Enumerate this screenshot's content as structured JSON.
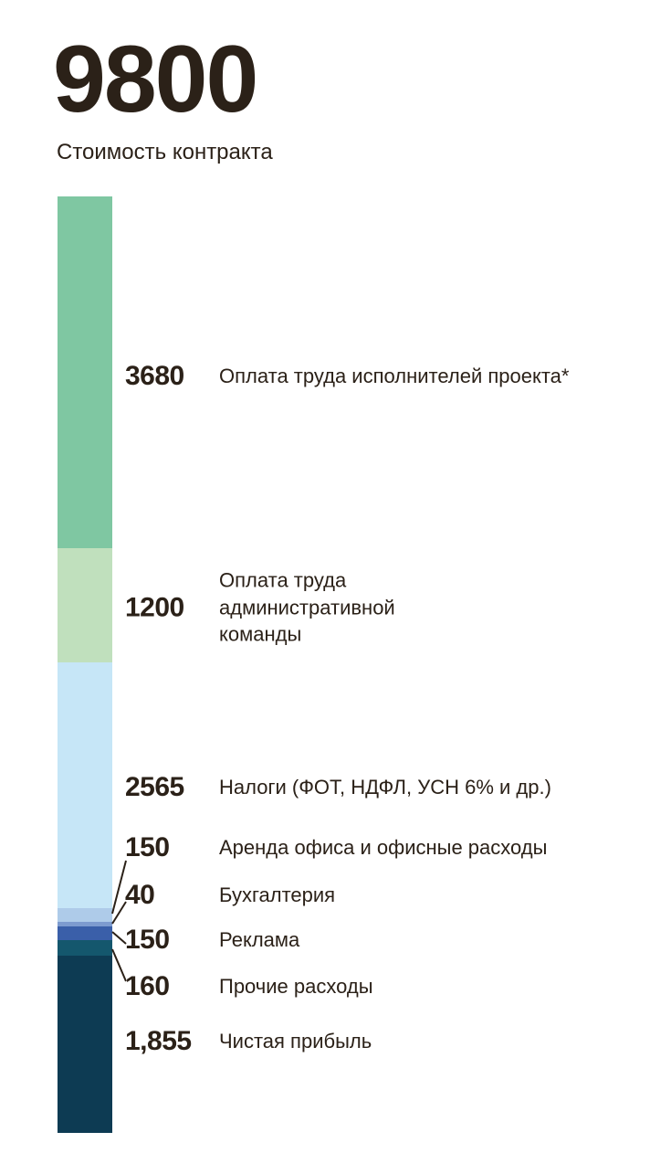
{
  "header": {
    "total": "9800",
    "subtitle": "Стоимость контракта"
  },
  "chart_data": {
    "type": "bar",
    "variant": "single-stacked-vertical-bar",
    "title": "9800",
    "subtitle": "Стоимость контракта",
    "total": 9800,
    "legend_position": "right-of-bar",
    "grid": false,
    "segments": [
      {
        "value": 3680,
        "value_label": "3680",
        "label": "Оплата труда исполнителей проекта*",
        "color": "#7fc7a2"
      },
      {
        "value": 1200,
        "value_label": "1200",
        "label": "Оплата труда административной команды",
        "color": "#c0e0bd"
      },
      {
        "value": 2565,
        "value_label": "2565",
        "label": "Налоги (ФОТ, НДФЛ, УСН 6% и др.)",
        "color": "#c6e6f7"
      },
      {
        "value": 150,
        "value_label": "150",
        "label": "Аренда офиса и офисные расходы",
        "color": "#aecbe9"
      },
      {
        "value": 40,
        "value_label": "40",
        "label": "Бухгалтерия",
        "color": "#7d9bcf"
      },
      {
        "value": 150,
        "value_label": "150",
        "label": "Реклама",
        "color": "#3a5fa9"
      },
      {
        "value": 160,
        "value_label": "160",
        "label": "Прочие расходы",
        "color": "#14576d"
      },
      {
        "value": 1855,
        "value_label": "1,855",
        "label": "Чистая прибыль",
        "color": "#0d3b53"
      }
    ],
    "leader_line_color": "#2b2118"
  }
}
